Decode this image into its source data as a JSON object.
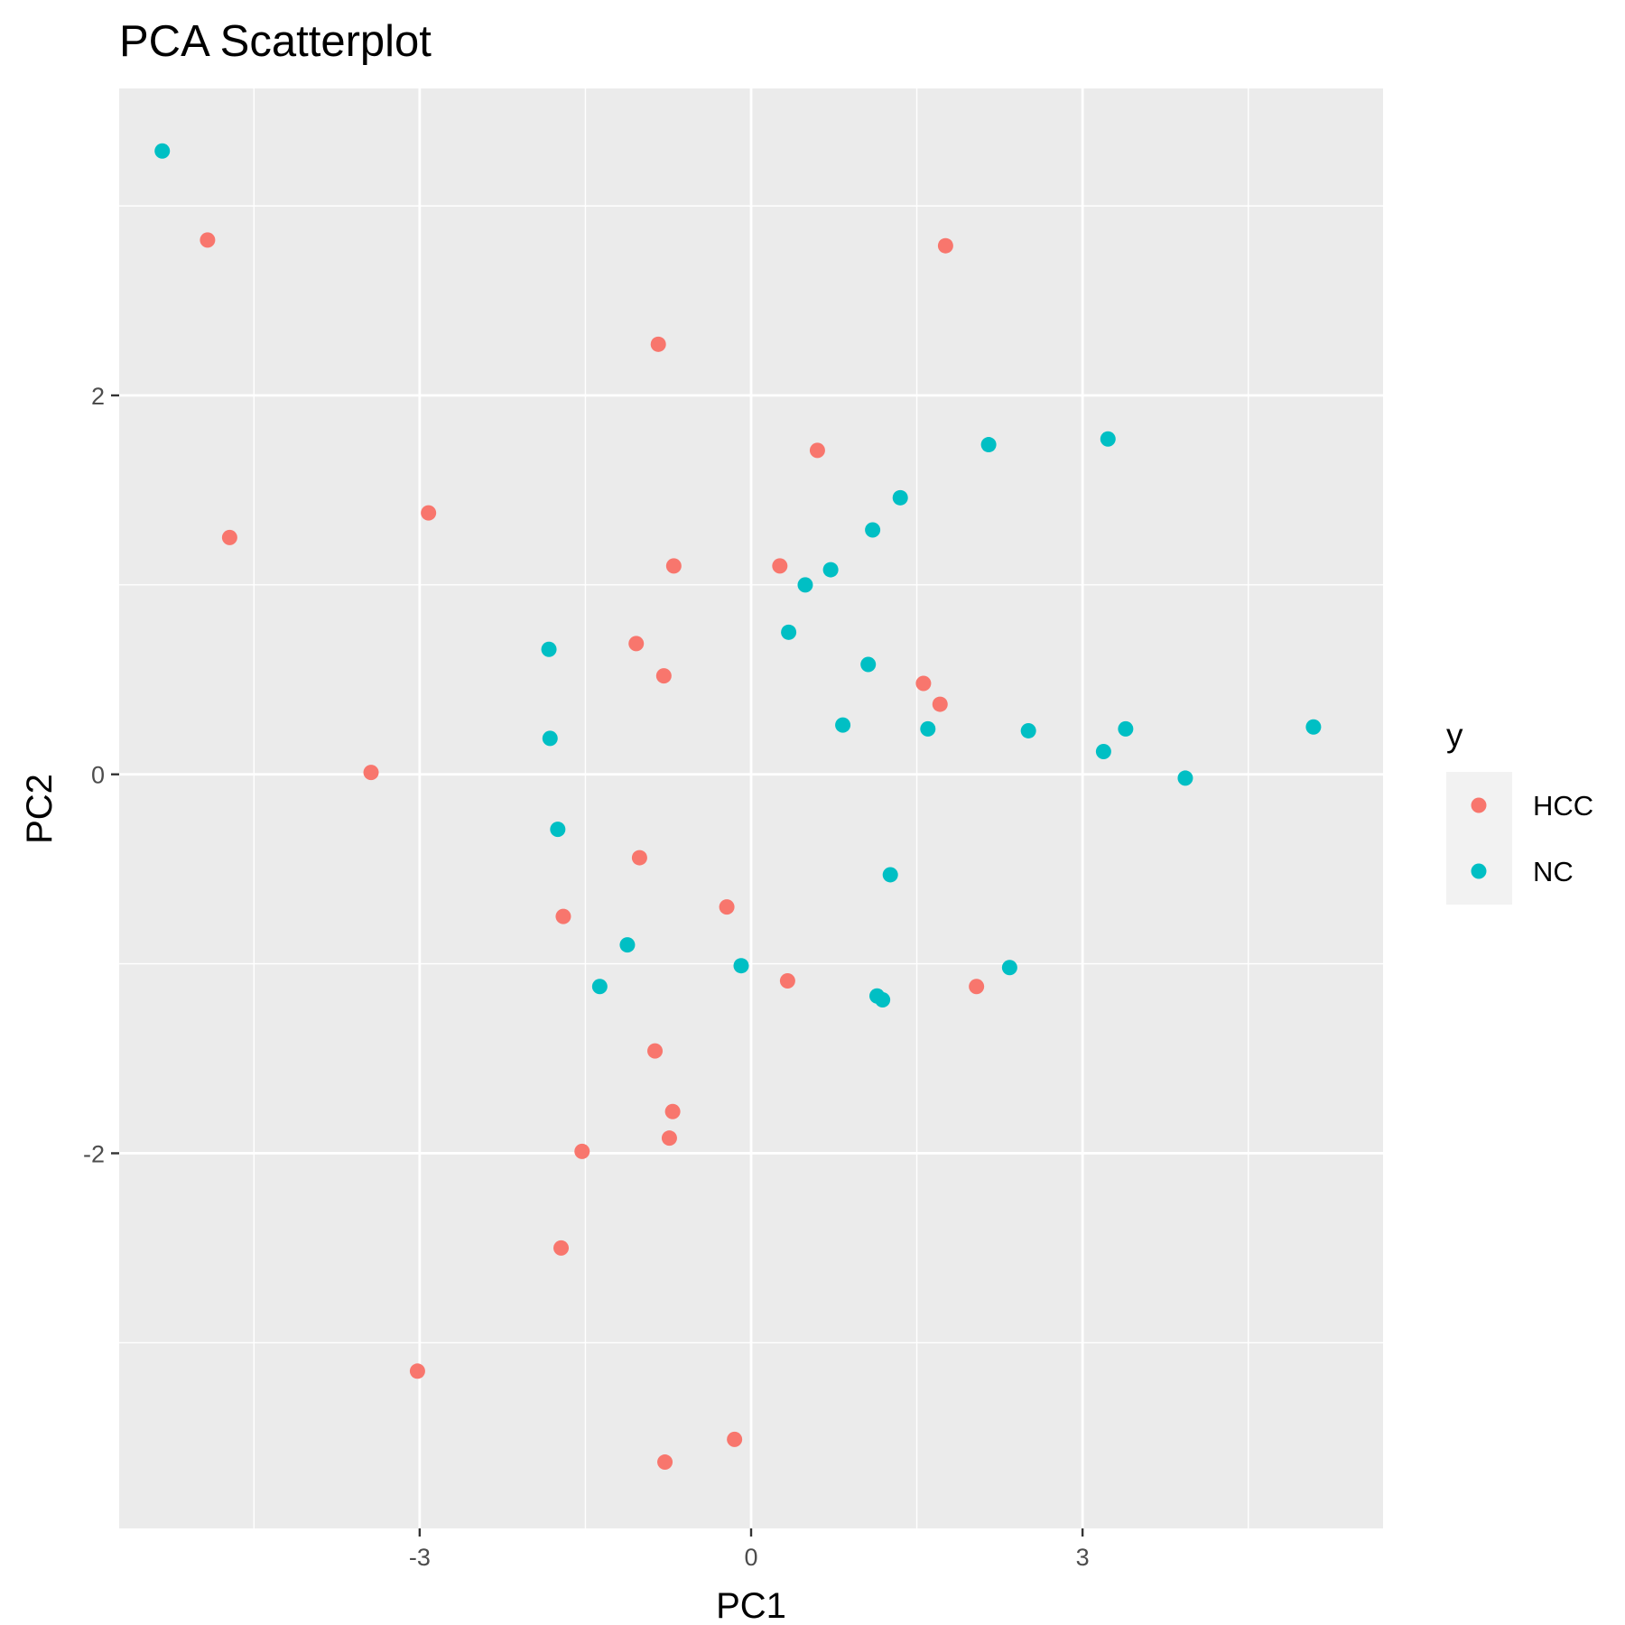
{
  "chart_data": {
    "type": "scatter",
    "title": "PCA Scatterplot",
    "xlabel": "PC1",
    "ylabel": "PC2",
    "xlim": [
      -5.72,
      5.72
    ],
    "ylim": [
      -3.98,
      3.62
    ],
    "x_ticks": [
      -3,
      0,
      3
    ],
    "x_tick_labels": [
      "-3",
      "0",
      "3"
    ],
    "y_ticks": [
      -2,
      0,
      2
    ],
    "y_tick_labels": [
      "-2",
      "0",
      "2"
    ],
    "grid": true,
    "legend": {
      "title": "y",
      "placement": "right"
    },
    "series": [
      {
        "name": "HCC",
        "color": "#F8766D",
        "points": [
          [
            -4.92,
            2.82
          ],
          [
            1.76,
            2.79
          ],
          [
            -0.84,
            2.27
          ],
          [
            0.6,
            1.71
          ],
          [
            -2.92,
            1.38
          ],
          [
            -4.72,
            1.25
          ],
          [
            -0.7,
            1.1
          ],
          [
            0.26,
            1.1
          ],
          [
            -1.04,
            0.69
          ],
          [
            -0.79,
            0.52
          ],
          [
            1.56,
            0.48
          ],
          [
            1.71,
            0.37
          ],
          [
            -3.44,
            0.01
          ],
          [
            -1.01,
            -0.44
          ],
          [
            -0.22,
            -0.7
          ],
          [
            -1.7,
            -0.75
          ],
          [
            0.33,
            -1.09
          ],
          [
            2.04,
            -1.12
          ],
          [
            -0.87,
            -1.46
          ],
          [
            -0.71,
            -1.78
          ],
          [
            -0.74,
            -1.92
          ],
          [
            -1.53,
            -1.99
          ],
          [
            -1.72,
            -2.5
          ],
          [
            -3.02,
            -3.15
          ],
          [
            -0.15,
            -3.51
          ],
          [
            -0.78,
            -3.63
          ]
        ]
      },
      {
        "name": "NC",
        "color": "#00BFC4",
        "points": [
          [
            -5.33,
            3.29
          ],
          [
            2.15,
            1.74
          ],
          [
            3.23,
            1.77
          ],
          [
            1.35,
            1.46
          ],
          [
            1.1,
            1.29
          ],
          [
            0.72,
            1.08
          ],
          [
            0.49,
            1.0
          ],
          [
            0.34,
            0.75
          ],
          [
            -1.83,
            0.66
          ],
          [
            1.06,
            0.58
          ],
          [
            -1.82,
            0.19
          ],
          [
            0.83,
            0.26
          ],
          [
            1.6,
            0.24
          ],
          [
            2.51,
            0.23
          ],
          [
            3.39,
            0.24
          ],
          [
            3.19,
            0.12
          ],
          [
            5.09,
            0.25
          ],
          [
            3.93,
            -0.02
          ],
          [
            -1.75,
            -0.29
          ],
          [
            1.26,
            -0.53
          ],
          [
            -1.12,
            -0.9
          ],
          [
            -0.09,
            -1.01
          ],
          [
            -1.37,
            -1.12
          ],
          [
            2.34,
            -1.02
          ],
          [
            1.14,
            -1.17
          ],
          [
            1.19,
            -1.19
          ]
        ]
      }
    ]
  }
}
